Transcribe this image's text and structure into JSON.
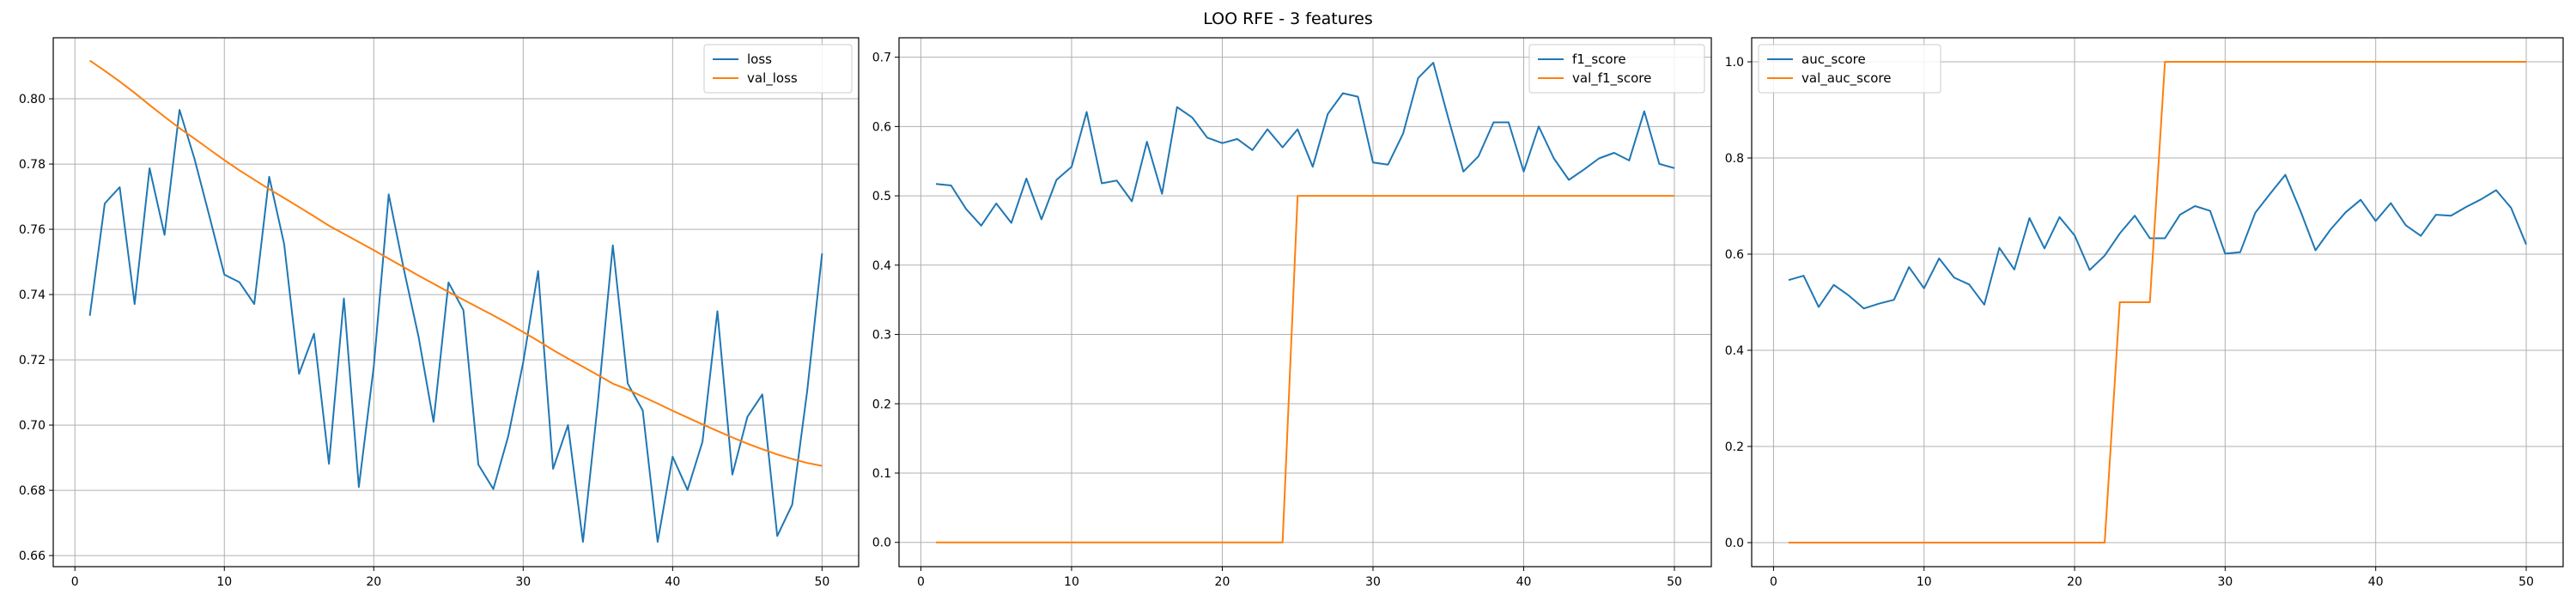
{
  "figure": {
    "title": "LOO RFE - 3 features"
  },
  "colors": {
    "series1": "#1f77b4",
    "series2": "#ff7f0e",
    "grid": "#b0b0b0",
    "axis": "#000000"
  },
  "chart_data": [
    {
      "type": "line",
      "title": "",
      "xlabel": "",
      "ylabel": "",
      "grid": true,
      "legend_position": "top-right",
      "xlim": [
        -1.45,
        52.45
      ],
      "ylim": [
        0.6566,
        0.8187
      ],
      "xticks": [
        0,
        10,
        20,
        30,
        40,
        50
      ],
      "yticks": [
        0.66,
        0.68,
        0.7,
        0.72,
        0.74,
        0.76,
        0.78,
        0.8
      ],
      "ytick_labels": [
        "0.66",
        "0.68",
        "0.70",
        "0.72",
        "0.74",
        "0.76",
        "0.78",
        "0.80"
      ],
      "x": [
        1,
        2,
        3,
        4,
        5,
        6,
        7,
        8,
        9,
        10,
        11,
        12,
        13,
        14,
        15,
        16,
        17,
        18,
        19,
        20,
        21,
        22,
        23,
        24,
        25,
        26,
        27,
        28,
        29,
        30,
        31,
        32,
        33,
        34,
        35,
        36,
        37,
        38,
        39,
        40,
        41,
        42,
        43,
        44,
        45,
        46,
        47,
        48,
        49,
        50
      ],
      "series": [
        {
          "name": "loss",
          "values": [
            0.7335,
            0.7679,
            0.7729,
            0.7371,
            0.7787,
            0.7583,
            0.7966,
            0.7816,
            0.764,
            0.7461,
            0.7438,
            0.7371,
            0.7761,
            0.7555,
            0.7157,
            0.728,
            0.6881,
            0.7388,
            0.681,
            0.718,
            0.7707,
            0.748,
            0.727,
            0.701,
            0.7437,
            0.7352,
            0.6879,
            0.6804,
            0.6966,
            0.7192,
            0.7472,
            0.6866,
            0.7,
            0.6642,
            0.7069,
            0.7551,
            0.7127,
            0.7045,
            0.6642,
            0.6903,
            0.6801,
            0.6949,
            0.7349,
            0.6848,
            0.7025,
            0.7094,
            0.666,
            0.6756,
            0.7103,
            0.7526
          ]
        },
        {
          "name": "val_loss",
          "values": [
            0.8117,
            0.8086,
            0.8053,
            0.8018,
            0.7981,
            0.7945,
            0.791,
            0.7878,
            0.7845,
            0.7812,
            0.7781,
            0.7752,
            0.7723,
            0.7696,
            0.7668,
            0.764,
            0.7611,
            0.7586,
            0.7561,
            0.7536,
            0.751,
            0.7484,
            0.7458,
            0.7433,
            0.7408,
            0.7384,
            0.736,
            0.7336,
            0.7311,
            0.7285,
            0.7258,
            0.723,
            0.7204,
            0.7179,
            0.7153,
            0.7127,
            0.7109,
            0.7087,
            0.7066,
            0.7044,
            0.7023,
            0.7002,
            0.6982,
            0.6962,
            0.6943,
            0.6926,
            0.691,
            0.6896,
            0.6884,
            0.6875
          ]
        }
      ]
    },
    {
      "type": "line",
      "title": "",
      "xlabel": "",
      "ylabel": "",
      "grid": true,
      "legend_position": "top-right",
      "xlim": [
        -1.45,
        52.45
      ],
      "ylim": [
        -0.035,
        0.728
      ],
      "xticks": [
        0,
        10,
        20,
        30,
        40,
        50
      ],
      "yticks": [
        0.0,
        0.1,
        0.2,
        0.3,
        0.4,
        0.5,
        0.6,
        0.7
      ],
      "ytick_labels": [
        "0.0",
        "0.1",
        "0.2",
        "0.3",
        "0.4",
        "0.5",
        "0.6",
        "0.7"
      ],
      "x": [
        1,
        2,
        3,
        4,
        5,
        6,
        7,
        8,
        9,
        10,
        11,
        12,
        13,
        14,
        15,
        16,
        17,
        18,
        19,
        20,
        21,
        22,
        23,
        24,
        25,
        26,
        27,
        28,
        29,
        30,
        31,
        32,
        33,
        34,
        35,
        36,
        37,
        38,
        39,
        40,
        41,
        42,
        43,
        44,
        45,
        46,
        47,
        48,
        49,
        50
      ],
      "series": [
        {
          "name": "f1_score",
          "values": [
            0.517,
            0.515,
            0.481,
            0.457,
            0.489,
            0.461,
            0.525,
            0.466,
            0.523,
            0.542,
            0.621,
            0.518,
            0.522,
            0.492,
            0.578,
            0.503,
            0.628,
            0.613,
            0.584,
            0.576,
            0.582,
            0.566,
            0.596,
            0.57,
            0.596,
            0.542,
            0.618,
            0.648,
            0.643,
            0.548,
            0.545,
            0.59,
            0.67,
            0.692,
            0.612,
            0.535,
            0.557,
            0.606,
            0.606,
            0.535,
            0.6,
            0.554,
            0.523,
            0.538,
            0.554,
            0.562,
            0.551,
            0.622,
            0.546,
            0.54
          ]
        },
        {
          "name": "val_f1_score",
          "values": [
            0,
            0,
            0,
            0,
            0,
            0,
            0,
            0,
            0,
            0,
            0,
            0,
            0,
            0,
            0,
            0,
            0,
            0,
            0,
            0,
            0,
            0,
            0,
            0,
            0.5,
            0.5,
            0.5,
            0.5,
            0.5,
            0.5,
            0.5,
            0.5,
            0.5,
            0.5,
            0.5,
            0.5,
            0.5,
            0.5,
            0.5,
            0.5,
            0.5,
            0.5,
            0.5,
            0.5,
            0.5,
            0.5,
            0.5,
            0.5,
            0.5,
            0.5
          ]
        }
      ]
    },
    {
      "type": "line",
      "title": "",
      "xlabel": "",
      "ylabel": "",
      "grid": true,
      "legend_position": "top-left",
      "xlim": [
        -1.45,
        52.45
      ],
      "ylim": [
        -0.05,
        1.05
      ],
      "xticks": [
        0,
        10,
        20,
        30,
        40,
        50
      ],
      "yticks": [
        0.0,
        0.2,
        0.4,
        0.6,
        0.8,
        1.0
      ],
      "ytick_labels": [
        "0.0",
        "0.2",
        "0.4",
        "0.6",
        "0.8",
        "1.0"
      ],
      "x": [
        1,
        2,
        3,
        4,
        5,
        6,
        7,
        8,
        9,
        10,
        11,
        12,
        13,
        14,
        15,
        16,
        17,
        18,
        19,
        20,
        21,
        22,
        23,
        24,
        25,
        26,
        27,
        28,
        29,
        30,
        31,
        32,
        33,
        34,
        35,
        36,
        37,
        38,
        39,
        40,
        41,
        42,
        43,
        44,
        45,
        46,
        47,
        48,
        49,
        50
      ],
      "series": [
        {
          "name": "auc_score",
          "values": [
            0.546,
            0.555,
            0.49,
            0.536,
            0.514,
            0.487,
            0.497,
            0.505,
            0.573,
            0.529,
            0.591,
            0.551,
            0.537,
            0.495,
            0.613,
            0.568,
            0.675,
            0.612,
            0.677,
            0.639,
            0.567,
            0.597,
            0.643,
            0.68,
            0.633,
            0.633,
            0.682,
            0.7,
            0.69,
            0.601,
            0.604,
            0.686,
            0.726,
            0.765,
            0.69,
            0.608,
            0.651,
            0.687,
            0.713,
            0.669,
            0.706,
            0.66,
            0.638,
            0.682,
            0.68,
            0.698,
            0.714,
            0.733,
            0.696,
            0.62
          ]
        },
        {
          "name": "val_auc_score",
          "values": [
            0,
            0,
            0,
            0,
            0,
            0,
            0,
            0,
            0,
            0,
            0,
            0,
            0,
            0,
            0,
            0,
            0,
            0,
            0,
            0,
            0,
            0,
            0.5,
            0.5,
            0.5,
            1,
            1,
            1,
            1,
            1,
            1,
            1,
            1,
            1,
            1,
            1,
            1,
            1,
            1,
            1,
            1,
            1,
            1,
            1,
            1,
            1,
            1,
            1,
            1,
            1
          ]
        }
      ]
    }
  ]
}
